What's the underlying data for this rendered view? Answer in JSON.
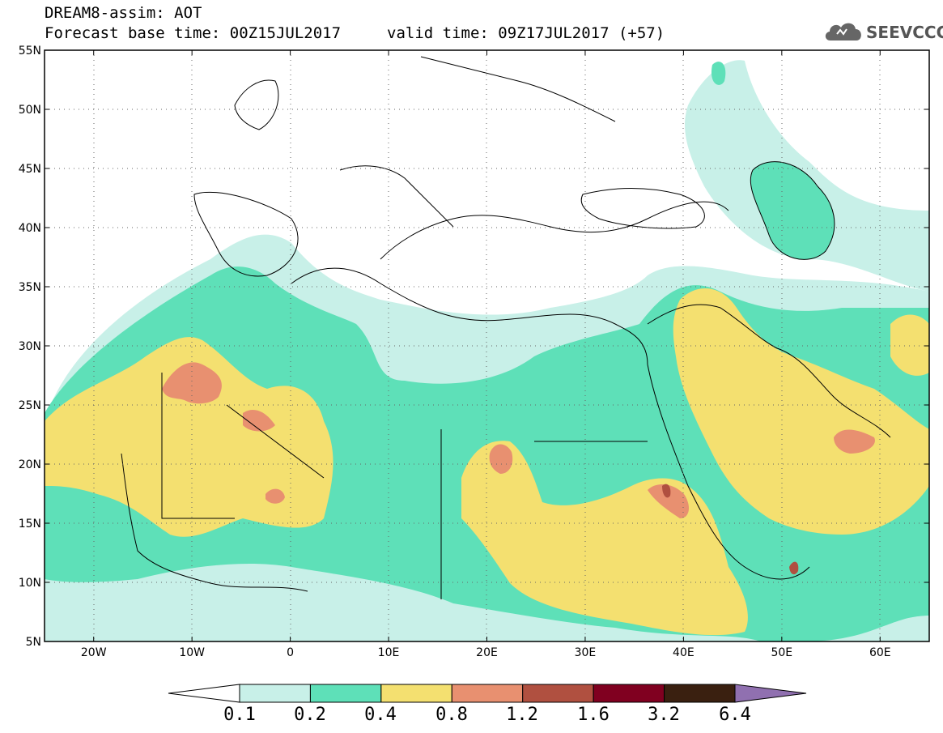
{
  "header": {
    "title": "DREAM8-assim: AOT",
    "base_time": "Forecast base time: 00Z15JUL2017",
    "valid_time": "valid time: 09Z17JUL2017 (+57)"
  },
  "logo": {
    "text": "SEEVCCC",
    "icon": "cloud-icon"
  },
  "map": {
    "lon_range": [
      -25,
      65
    ],
    "lat_range": [
      5,
      55
    ],
    "lat_ticks": [
      "55N",
      "50N",
      "45N",
      "40N",
      "35N",
      "30N",
      "25N",
      "20N",
      "15N",
      "10N",
      "5N"
    ],
    "lon_ticks": [
      "20W",
      "10W",
      "0",
      "10E",
      "20E",
      "30E",
      "40E",
      "50E",
      "60E"
    ],
    "grid": "dotted"
  },
  "colorbar": {
    "labels": [
      "0.1",
      "0.2",
      "0.4",
      "0.8",
      "1.2",
      "1.6",
      "3.2",
      "6.4"
    ],
    "colors": [
      "#c8f0e8",
      "#5ee0b8",
      "#f4e070",
      "#e89070",
      "#b05040",
      "#800020",
      "#3a2010",
      "#9070b0"
    ]
  },
  "colors": {
    "c01": "#c8f0e8",
    "c02": "#5ee0b8",
    "c04": "#f4e070",
    "c08": "#e89070",
    "c12": "#b05040"
  }
}
